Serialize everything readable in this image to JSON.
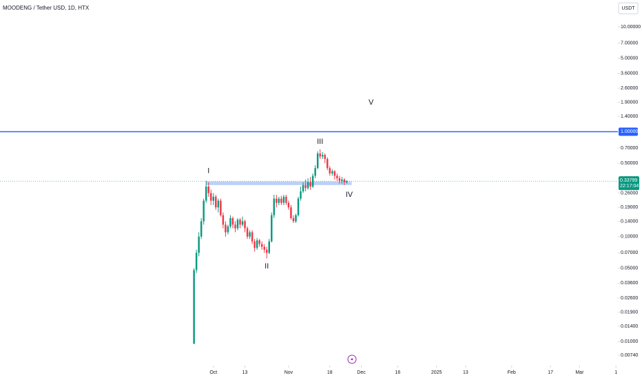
{
  "chart_data": {
    "type": "candlestick",
    "title": "MOODENG / Tether USD, 1D, HTX",
    "currency": "USDT",
    "log_scale": true,
    "up_color": "#089981",
    "down_color": "#f23645",
    "ylim": [
      0.006,
      18
    ],
    "yticks": [
      {
        "value": 10,
        "label": "10.00000"
      },
      {
        "value": 7,
        "label": "7.00000"
      },
      {
        "value": 5,
        "label": "5.00000"
      },
      {
        "value": 3.6,
        "label": "3.60000"
      },
      {
        "value": 2.6,
        "label": "2.60000"
      },
      {
        "value": 1.9,
        "label": "1.90000"
      },
      {
        "value": 1.4,
        "label": "1.40000"
      },
      {
        "value": 0.7,
        "label": "0.70000"
      },
      {
        "value": 0.5,
        "label": "0.50000"
      },
      {
        "value": 0.36,
        "label": "0.36000"
      },
      {
        "value": 0.26,
        "label": "0.26000"
      },
      {
        "value": 0.19,
        "label": "0.19000"
      },
      {
        "value": 0.14,
        "label": "0.14000"
      },
      {
        "value": 0.1,
        "label": "0.10000"
      },
      {
        "value": 0.07,
        "label": "0.07000"
      },
      {
        "value": 0.05,
        "label": "0.05000"
      },
      {
        "value": 0.036,
        "label": "0.03600"
      },
      {
        "value": 0.026,
        "label": "0.02600"
      },
      {
        "value": 0.019,
        "label": "0.01900"
      },
      {
        "value": 0.014,
        "label": "0.01400"
      },
      {
        "value": 0.01,
        "label": "0.01000"
      },
      {
        "value": 0.0074,
        "label": "0.00740"
      }
    ],
    "xlim": [
      -88,
      166.8
    ],
    "xticks": [
      {
        "value": 0,
        "label": "Oct"
      },
      13,
      {
        "value": 31,
        "label": "Nov"
      },
      {
        "value": 48,
        "label": "18"
      },
      {
        "value": 61,
        "label": "Dec"
      },
      {
        "value": 76,
        "label": "16"
      },
      {
        "value": 92,
        "label": "2025"
      },
      {
        "value": 104,
        "label": "13"
      },
      {
        "value": 123,
        "label": "Feb"
      },
      {
        "value": 139,
        "label": "17"
      },
      {
        "value": 151,
        "label": "Mar"
      },
      {
        "value": 166,
        "label": "1"
      }
    ],
    "x": [
      -8,
      -7,
      -6,
      -5,
      -4,
      -3,
      -2,
      -1,
      0,
      1,
      2,
      3,
      4,
      5,
      6,
      7,
      8,
      9,
      10,
      11,
      12,
      13,
      14,
      15,
      16,
      17,
      18,
      19,
      20,
      21,
      22,
      23,
      24,
      25,
      26,
      27,
      28,
      29,
      30,
      31,
      32,
      33,
      34,
      35,
      36,
      37,
      38,
      39,
      40,
      41,
      42,
      43,
      44,
      45,
      46,
      47,
      48,
      49,
      50,
      51,
      52,
      53,
      54,
      55
    ],
    "open": [
      0.0095,
      0.048,
      0.07,
      0.1,
      0.14,
      0.22,
      0.3,
      0.26,
      0.22,
      0.24,
      0.19,
      0.22,
      0.16,
      0.13,
      0.11,
      0.125,
      0.15,
      0.13,
      0.12,
      0.145,
      0.13,
      0.14,
      0.12,
      0.1,
      0.11,
      0.09,
      0.078,
      0.092,
      0.085,
      0.08,
      0.075,
      0.07,
      0.09,
      0.16,
      0.23,
      0.21,
      0.23,
      0.21,
      0.24,
      0.21,
      0.19,
      0.15,
      0.14,
      0.16,
      0.23,
      0.27,
      0.31,
      0.29,
      0.33,
      0.3,
      0.38,
      0.45,
      0.62,
      0.58,
      0.6,
      0.55,
      0.45,
      0.4,
      0.42,
      0.38,
      0.36,
      0.34,
      0.35,
      0.33
    ],
    "high": [
      0.05,
      0.075,
      0.11,
      0.15,
      0.23,
      0.34,
      0.33,
      0.28,
      0.26,
      0.25,
      0.23,
      0.23,
      0.17,
      0.14,
      0.13,
      0.16,
      0.155,
      0.14,
      0.15,
      0.15,
      0.155,
      0.145,
      0.125,
      0.115,
      0.115,
      0.095,
      0.097,
      0.095,
      0.09,
      0.085,
      0.08,
      0.095,
      0.17,
      0.25,
      0.25,
      0.24,
      0.245,
      0.25,
      0.25,
      0.22,
      0.2,
      0.16,
      0.165,
      0.24,
      0.3,
      0.33,
      0.35,
      0.36,
      0.37,
      0.4,
      0.48,
      0.65,
      0.68,
      0.64,
      0.62,
      0.57,
      0.47,
      0.44,
      0.43,
      0.4,
      0.38,
      0.37,
      0.36,
      0.345
    ],
    "low": [
      0.0095,
      0.045,
      0.065,
      0.095,
      0.13,
      0.21,
      0.24,
      0.2,
      0.2,
      0.18,
      0.17,
      0.155,
      0.12,
      0.1,
      0.105,
      0.12,
      0.12,
      0.11,
      0.115,
      0.12,
      0.125,
      0.11,
      0.095,
      0.095,
      0.085,
      0.072,
      0.075,
      0.08,
      0.075,
      0.07,
      0.062,
      0.068,
      0.088,
      0.15,
      0.19,
      0.2,
      0.2,
      0.2,
      0.2,
      0.18,
      0.145,
      0.135,
      0.135,
      0.155,
      0.22,
      0.26,
      0.27,
      0.28,
      0.28,
      0.29,
      0.36,
      0.44,
      0.55,
      0.55,
      0.5,
      0.43,
      0.38,
      0.38,
      0.35,
      0.34,
      0.32,
      0.32,
      0.31,
      0.32
    ],
    "close": [
      0.048,
      0.07,
      0.1,
      0.14,
      0.22,
      0.3,
      0.26,
      0.22,
      0.24,
      0.19,
      0.22,
      0.16,
      0.13,
      0.11,
      0.125,
      0.15,
      0.13,
      0.12,
      0.145,
      0.13,
      0.14,
      0.12,
      0.1,
      0.11,
      0.09,
      0.078,
      0.092,
      0.085,
      0.08,
      0.075,
      0.07,
      0.09,
      0.16,
      0.23,
      0.21,
      0.23,
      0.21,
      0.24,
      0.21,
      0.19,
      0.15,
      0.14,
      0.16,
      0.23,
      0.27,
      0.31,
      0.29,
      0.33,
      0.3,
      0.38,
      0.45,
      0.62,
      0.58,
      0.6,
      0.55,
      0.45,
      0.4,
      0.42,
      0.38,
      0.36,
      0.34,
      0.35,
      0.33,
      0.338
    ],
    "last_price": {
      "value": 0.33799,
      "label": "0.33799",
      "countdown": "22:17:04"
    },
    "hline": {
      "value": 1,
      "label": "1.00000",
      "color": "#2962ff"
    },
    "zone": {
      "x0": -3,
      "x1": 57,
      "low": 0.31,
      "high": 0.335,
      "color": "#bcd0f7"
    },
    "annotations": [
      {
        "text": "I",
        "x": -2,
        "y": 0.42
      },
      {
        "text": "II",
        "x": 22,
        "y": 0.052
      },
      {
        "text": "III",
        "x": 44,
        "y": 0.8
      },
      {
        "text": "IV",
        "x": 56,
        "y": 0.25
      },
      {
        "text": "V",
        "x": 65,
        "y": 1.9
      }
    ]
  }
}
